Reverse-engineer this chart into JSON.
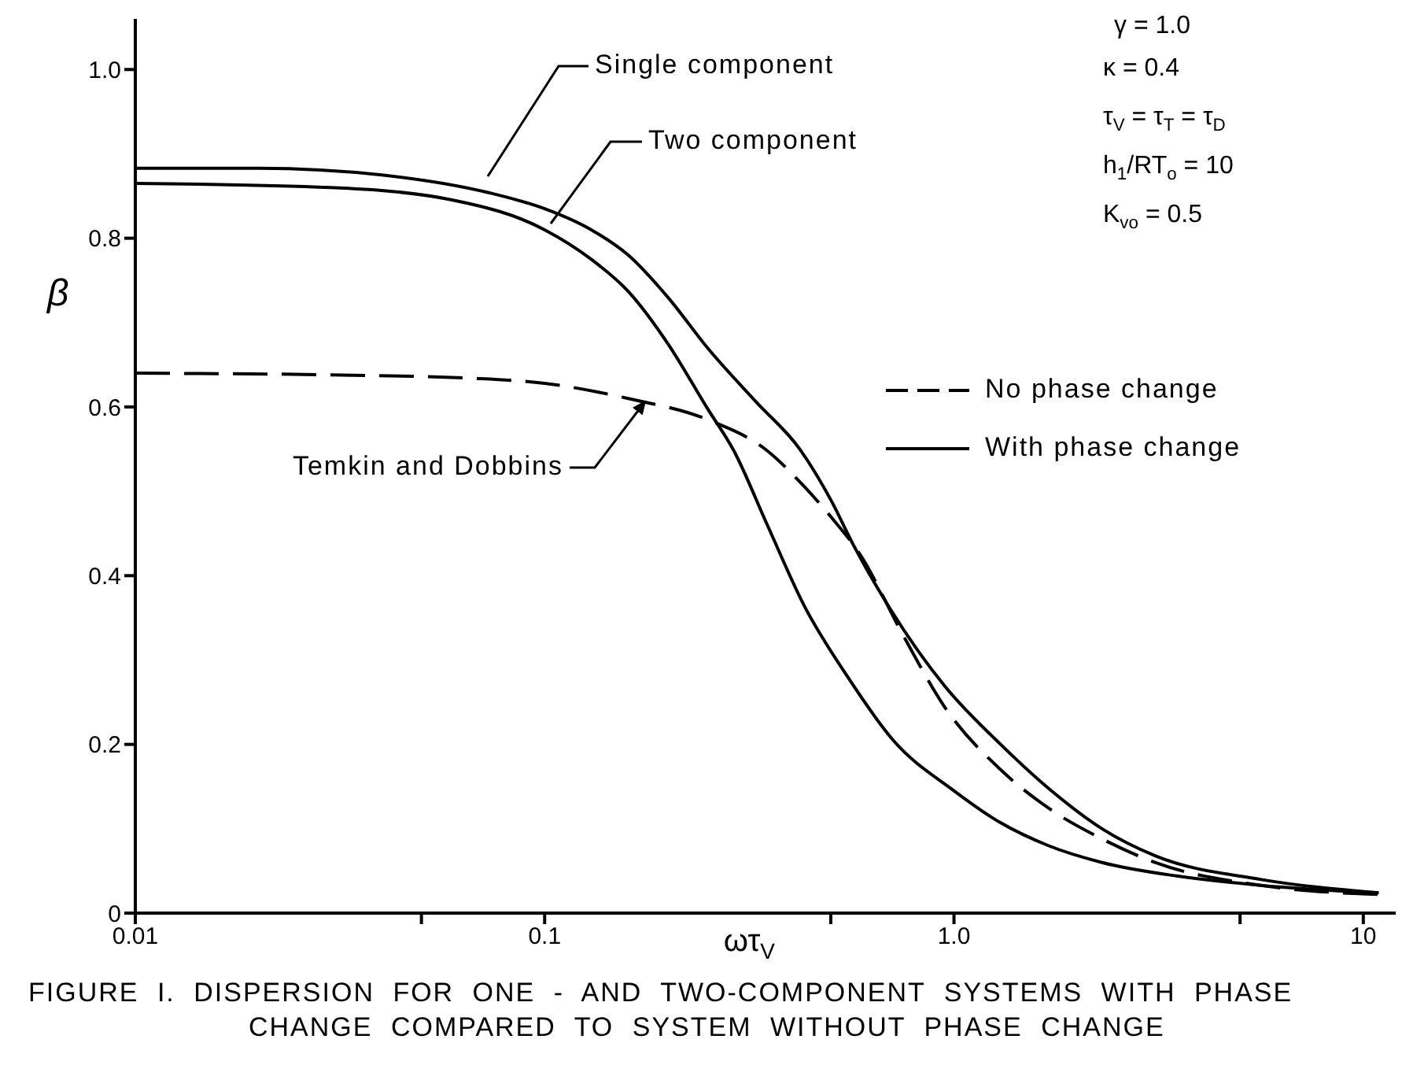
{
  "chart_data": {
    "type": "line",
    "xlabel": "ωτ$_{V}$",
    "ylabel": "β",
    "log": "x",
    "marker": "none",
    "xlim": [
      0.01,
      12
    ],
    "ylim": [
      0,
      1.06
    ],
    "xticks": [
      {
        "value": 0.01,
        "label": "0.01"
      },
      {
        "value": 0.05,
        "label": null
      },
      {
        "value": 0.1,
        "label": "0.1"
      },
      {
        "value": 0.5,
        "label": null
      },
      {
        "value": 1,
        "label": "1.0"
      },
      {
        "value": 5,
        "label": null
      },
      {
        "value": 10,
        "label": "10"
      }
    ],
    "yticks": [
      {
        "value": 0,
        "label": "0"
      },
      {
        "value": 0.2,
        "label": "0.2"
      },
      {
        "value": 0.4,
        "label": "0.4"
      },
      {
        "value": 0.6,
        "label": "0.6"
      },
      {
        "value": 0.8,
        "label": "0.8"
      },
      {
        "value": 1,
        "label": "1.0"
      }
    ],
    "series": [
      {
        "name": "Single component",
        "color": "#000000",
        "line_style": "solid",
        "x": [
          0.01,
          0.02,
          0.04,
          0.073,
          0.1,
          0.13,
          0.16,
          0.2,
          0.25,
          0.33,
          0.42,
          0.5,
          0.57,
          0.7,
          0.95,
          1.3,
          1.72,
          2.3,
          3.1,
          5.6,
          10.9
        ],
        "values": [
          0.883,
          0.883,
          0.875,
          0.854,
          0.835,
          0.81,
          0.78,
          0.73,
          0.67,
          0.605,
          0.55,
          0.49,
          0.435,
          0.36,
          0.269,
          0.2,
          0.146,
          0.1,
          0.068,
          0.04,
          0.024
        ]
      },
      {
        "name": "Two component",
        "color": "#000000",
        "line_style": "solid",
        "x": [
          0.01,
          0.03,
          0.06,
          0.1,
          0.13,
          0.16,
          0.2,
          0.25,
          0.29,
          0.35,
          0.43,
          0.55,
          0.71,
          1.0,
          1.27,
          1.7,
          2.3,
          3.5,
          5.6,
          10.9
        ],
        "values": [
          0.865,
          0.86,
          0.845,
          0.81,
          0.775,
          0.737,
          0.675,
          0.598,
          0.548,
          0.46,
          0.365,
          0.28,
          0.205,
          0.145,
          0.11,
          0.08,
          0.06,
          0.044,
          0.033,
          0.024
        ]
      },
      {
        "name": "Temkin and Dobbins",
        "color": "#000000",
        "line_style": "dashed",
        "x": [
          0.01,
          0.03,
          0.066,
          0.1,
          0.16,
          0.25,
          0.35,
          0.43,
          0.5,
          0.59,
          0.75,
          0.95,
          1.3,
          1.72,
          2.3,
          3.1,
          5.6,
          10.9
        ],
        "values": [
          0.64,
          0.638,
          0.634,
          0.628,
          0.61,
          0.585,
          0.548,
          0.506,
          0.47,
          0.425,
          0.33,
          0.244,
          0.17,
          0.123,
          0.088,
          0.06,
          0.033,
          0.022
        ]
      }
    ],
    "annotations": [
      "γ = 1.0",
      "κ = 0.4",
      "τ$_{V}$ = τ$_{T}$ = τ$_{D}$",
      "h$_{1}$/RT$_{o}$ = 10",
      "K$_{vo}$ = 0.5",
      "No phase change",
      "With phase change",
      "FIGURE I. DISPERSION FOR ONE - AND TWO-COMPONENT SYSTEMS WITH PHASE CHANGE COMPARED TO SYSTEM WITHOUT PHASE CHANGE"
    ]
  }
}
